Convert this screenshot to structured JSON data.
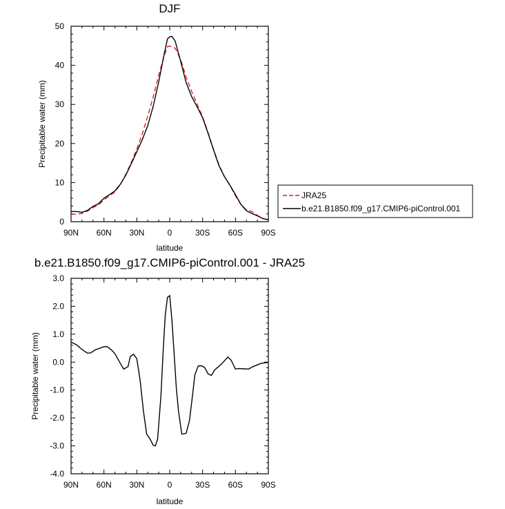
{
  "chart_data": [
    {
      "type": "line",
      "title": "DJF",
      "xlabel": "latitude",
      "ylabel": "Precipitable water (mm)",
      "xlim": [
        90,
        -90
      ],
      "ylim": [
        0,
        50
      ],
      "x_tick_values": [
        90,
        60,
        30,
        0,
        -30,
        -60,
        -90
      ],
      "x_tick_labels": [
        "90N",
        "60N",
        "30N",
        "0",
        "30S",
        "60S",
        "90S"
      ],
      "y_tick_values": [
        0,
        10,
        20,
        30,
        40,
        50
      ],
      "y_tick_labels": [
        "0",
        "10",
        "20",
        "30",
        "40",
        "50"
      ],
      "grid": false,
      "legend_position": "right-outside",
      "series": [
        {
          "name": "JRA25",
          "color": "#e41a1c",
          "dash": "dashed",
          "x": [
            90,
            85,
            80,
            75,
            70,
            65,
            60,
            55,
            50,
            45,
            40,
            35,
            30,
            25,
            20,
            15,
            10,
            5,
            2,
            0,
            -5,
            -10,
            -15,
            -20,
            -25,
            -30,
            -35,
            -40,
            -45,
            -50,
            -55,
            -60,
            -65,
            -70,
            -75,
            -80,
            -85,
            -90
          ],
          "y": [
            1.9,
            1.9,
            2.1,
            2.7,
            3.6,
            4.3,
            5.6,
            6.6,
            7.6,
            9.5,
            12.1,
            15.2,
            18.6,
            22.5,
            27.0,
            32.0,
            37.5,
            42.5,
            44.8,
            44.9,
            44.4,
            41.5,
            37.0,
            33.3,
            30.1,
            26.8,
            22.8,
            18.5,
            14.5,
            11.5,
            9.3,
            6.6,
            4.4,
            3.0,
            2.6,
            1.6,
            0.8,
            0.5
          ]
        },
        {
          "name": "b.e21.B1850.f09_g17.CMIP6-piControl.001",
          "color": "#000000",
          "dash": "solid",
          "x": [
            90,
            85,
            80,
            75,
            70,
            65,
            60,
            55,
            50,
            45,
            40,
            35,
            30,
            25,
            20,
            15,
            10,
            5,
            2,
            0,
            -2,
            -5,
            -10,
            -15,
            -20,
            -25,
            -30,
            -35,
            -40,
            -45,
            -50,
            -55,
            -60,
            -65,
            -70,
            -75,
            -80,
            -85,
            -90
          ],
          "y": [
            2.6,
            2.6,
            2.4,
            2.9,
            3.9,
            4.6,
            6.0,
            6.9,
            7.9,
            9.6,
            11.9,
            14.9,
            17.9,
            21.0,
            24.6,
            29.6,
            35.8,
            43.0,
            46.8,
            47.3,
            47.4,
            46.2,
            41.0,
            35.6,
            32.0,
            29.4,
            26.6,
            22.6,
            18.3,
            14.3,
            11.5,
            9.3,
            6.9,
            4.4,
            2.8,
            2.1,
            1.5,
            0.8,
            0.5
          ]
        }
      ]
    },
    {
      "type": "line",
      "title": "b.e21.B1850.f09_g17.CMIP6-piControl.001 - JRA25",
      "xlabel": "latitude",
      "ylabel": "Precipitable water (mm)",
      "xlim": [
        90,
        -90
      ],
      "ylim": [
        -4,
        3
      ],
      "x_tick_values": [
        90,
        60,
        30,
        0,
        -30,
        -60,
        -90
      ],
      "x_tick_labels": [
        "90N",
        "60N",
        "30N",
        "0",
        "30S",
        "60S",
        "90S"
      ],
      "y_tick_values": [
        -4,
        -3,
        -2,
        -1,
        0,
        1,
        2,
        3
      ],
      "y_tick_labels": [
        "-4.0",
        "-3.0",
        "-2.0",
        "-1.0",
        "0.0",
        "1.0",
        "2.0",
        "3.0"
      ],
      "grid": false,
      "series": [
        {
          "color": "#000000",
          "x": [
            90,
            85,
            80,
            75,
            72,
            68,
            65,
            60,
            57,
            53,
            50,
            45,
            42,
            38,
            36,
            33,
            30,
            27,
            24,
            21,
            18,
            15,
            13,
            11,
            8,
            6,
            4,
            2,
            0,
            -2,
            -4,
            -6,
            -8,
            -11,
            -15,
            -18,
            -20,
            -23,
            -26,
            -29,
            -32,
            -35,
            -38,
            -41,
            -44,
            -47,
            -50,
            -53,
            -56,
            -60,
            -63,
            -66,
            -68,
            -72,
            -76,
            -80,
            -83,
            -86,
            -90
          ],
          "y": [
            0.72,
            0.62,
            0.45,
            0.32,
            0.33,
            0.44,
            0.48,
            0.55,
            0.55,
            0.43,
            0.3,
            -0.05,
            -0.25,
            -0.16,
            0.2,
            0.28,
            0.12,
            -0.65,
            -1.75,
            -2.58,
            -2.75,
            -2.98,
            -3.0,
            -2.75,
            -1.2,
            0.4,
            1.7,
            2.32,
            2.38,
            1.5,
            0.3,
            -0.9,
            -1.75,
            -2.58,
            -2.55,
            -2.1,
            -1.45,
            -0.45,
            -0.14,
            -0.13,
            -0.2,
            -0.42,
            -0.48,
            -0.28,
            -0.18,
            -0.08,
            0.05,
            0.18,
            0.07,
            -0.25,
            -0.23,
            -0.24,
            -0.24,
            -0.25,
            -0.16,
            -0.1,
            -0.05,
            -0.03,
            -0.01
          ]
        }
      ]
    }
  ]
}
